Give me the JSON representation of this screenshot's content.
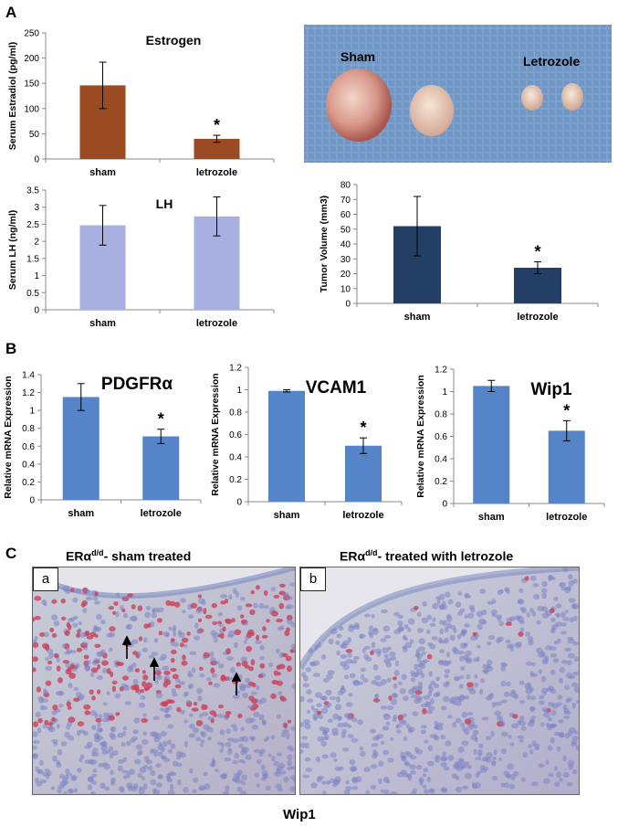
{
  "panel_labels": {
    "a": "A",
    "b": "B",
    "c": "C"
  },
  "chart_data": [
    {
      "id": "estrogen",
      "type": "bar",
      "title": "Estrogen",
      "ylabel": "Serum Estradiol (pg/ml)",
      "categories": [
        "sham",
        "letrozole"
      ],
      "values": [
        146,
        40
      ],
      "errors": [
        46,
        7
      ],
      "color": "#9c4a22",
      "ylim": [
        0,
        250
      ],
      "ticks": [
        "0",
        "50",
        "100",
        "150",
        "200",
        "250"
      ],
      "significance": [
        "",
        "*"
      ]
    },
    {
      "id": "lh",
      "type": "bar",
      "title": "LH",
      "ylabel": "Serum LH (ng/ml)",
      "categories": [
        "sham",
        "letrozole"
      ],
      "values": [
        2.47,
        2.73
      ],
      "errors": [
        0.58,
        0.57
      ],
      "color": "#a7b0e0",
      "ylim": [
        0,
        3.5
      ],
      "ticks": [
        "0",
        "0.5",
        "1",
        "1.5",
        "2",
        "2.5",
        "3",
        "3.5"
      ],
      "significance": [
        "",
        ""
      ]
    },
    {
      "id": "tumor",
      "type": "bar",
      "title": "",
      "ylabel": "Tumor Volume (mm3)",
      "categories": [
        "sham",
        "letrozole"
      ],
      "values": [
        52,
        24
      ],
      "errors": [
        20,
        4
      ],
      "color": "#243f66",
      "ylim": [
        0,
        80
      ],
      "ticks": [
        "0",
        "10",
        "20",
        "30",
        "40",
        "50",
        "60",
        "70",
        "80"
      ],
      "significance": [
        "",
        "*"
      ]
    },
    {
      "id": "pdgfra",
      "type": "bar",
      "title": "PDGFRα",
      "ylabel": "Relative mRNA Expression",
      "categories": [
        "sham",
        "letrozole"
      ],
      "values": [
        1.15,
        0.71
      ],
      "errors": [
        0.15,
        0.08
      ],
      "color": "#5585c8",
      "ylim": [
        0,
        1.4
      ],
      "ticks": [
        "0",
        "0.2",
        "0.4",
        "0.6",
        "0.8",
        "1",
        "1.2",
        "1.4"
      ],
      "significance": [
        "",
        "*"
      ]
    },
    {
      "id": "vcam1",
      "type": "bar",
      "title": "VCAM1",
      "ylabel": "Relative mRNA Expression",
      "categories": [
        "sham",
        "letrozole"
      ],
      "values": [
        0.99,
        0.5
      ],
      "errors": [
        0.01,
        0.07
      ],
      "color": "#5585c8",
      "ylim": [
        0,
        1.2
      ],
      "ticks": [
        "0",
        "0.2",
        "0.4",
        "0.6",
        "0.8",
        "1",
        "1.2"
      ],
      "significance": [
        "",
        "*"
      ]
    },
    {
      "id": "wip1",
      "type": "bar",
      "title": "Wip1",
      "ylabel": "Relative mRNA Expression",
      "categories": [
        "sham",
        "letrozole"
      ],
      "values": [
        1.05,
        0.65
      ],
      "errors": [
        0.05,
        0.09
      ],
      "color": "#5585c8",
      "ylim": [
        0,
        1.2
      ],
      "ticks": [
        "0",
        "0.2",
        "0.4",
        "0.6",
        "0.8",
        "1",
        "1.2"
      ],
      "significance": [
        "",
        "*"
      ]
    }
  ],
  "photo": {
    "labels": [
      "Sham",
      "Letrozole"
    ]
  },
  "panel_c": {
    "left_title": {
      "prefix": "ERα",
      "sup": "d/d",
      "suffix": "- sham treated"
    },
    "right_title": {
      "prefix": "ERα",
      "sup": "d/d",
      "suffix": "- treated with letrozole"
    },
    "left_label": "a",
    "right_label": "b",
    "caption": "Wip1"
  }
}
